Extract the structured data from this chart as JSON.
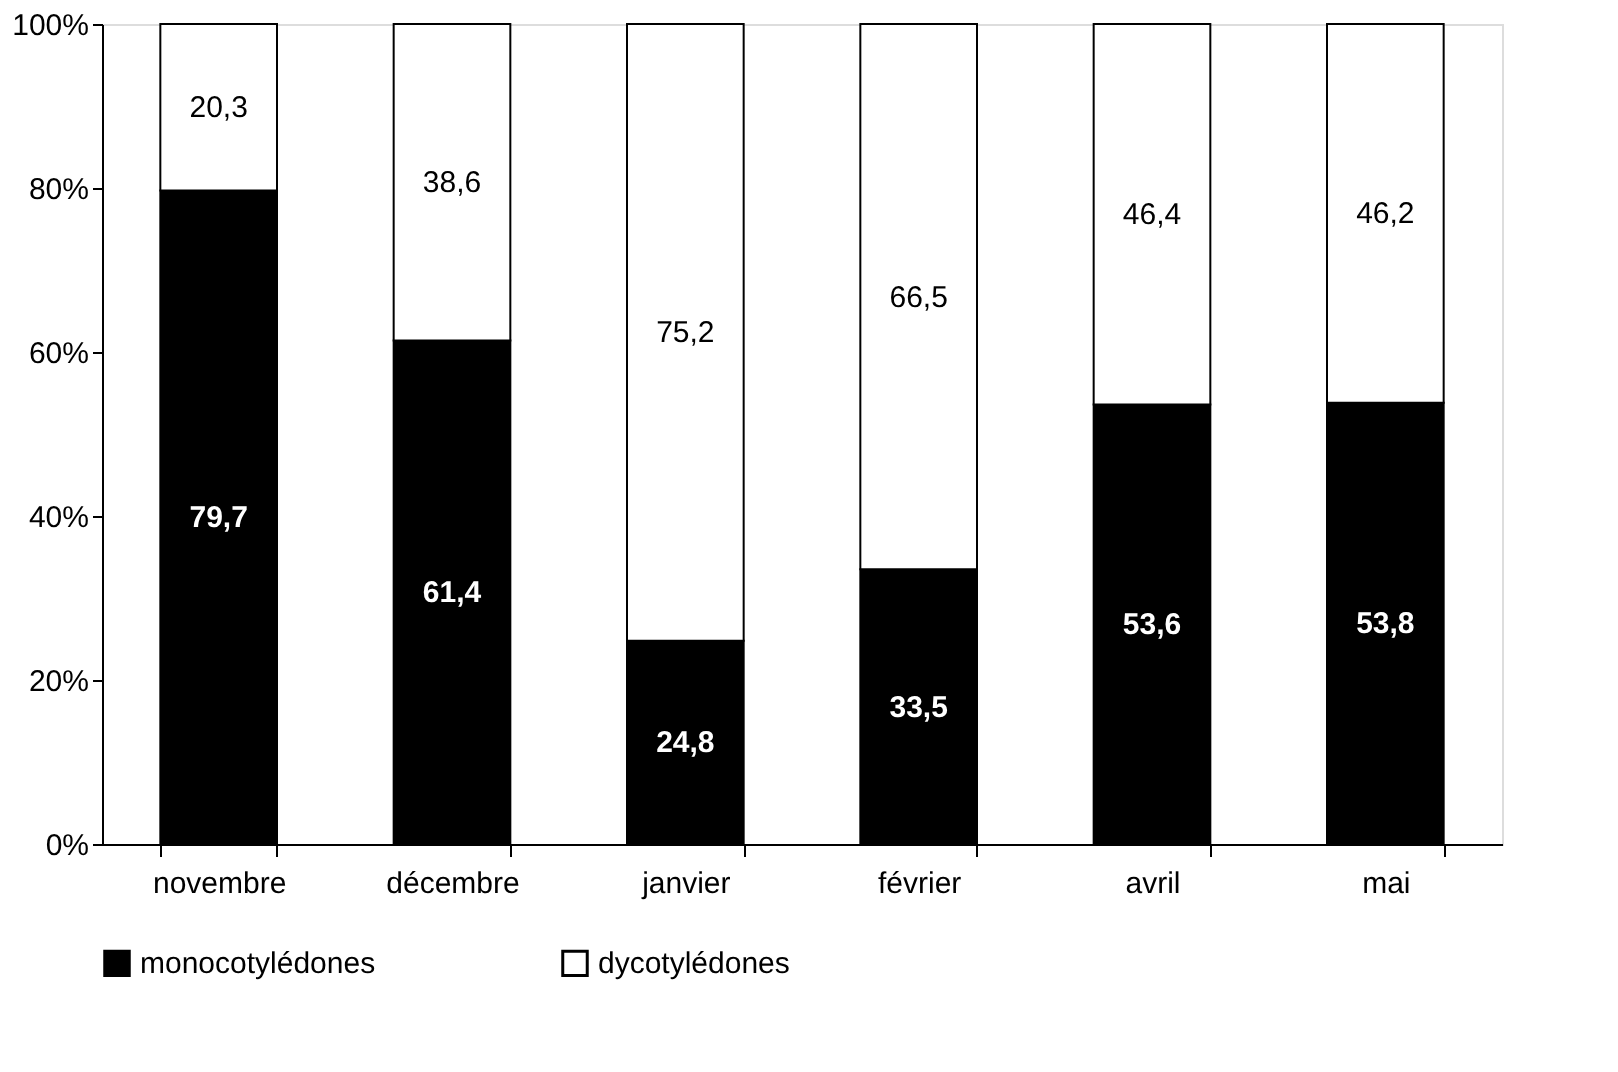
{
  "chart_data": {
    "type": "bar",
    "stacked": true,
    "categories": [
      "novembre",
      "décembre",
      "janvier",
      "février",
      "avril",
      "mai"
    ],
    "series": [
      {
        "name": "monocotylédones",
        "color": "#000000",
        "values": [
          79.7,
          61.4,
          24.8,
          33.5,
          53.6,
          53.8
        ],
        "value_labels": [
          "79,7",
          "61,4",
          "24,8",
          "33,5",
          "53,6",
          "53,8"
        ]
      },
      {
        "name": "dycotylédones",
        "color": "#ffffff",
        "values": [
          20.3,
          38.6,
          75.2,
          66.5,
          46.4,
          46.2
        ],
        "value_labels": [
          "20,3",
          "38,6",
          "75,2",
          "66,5",
          "46,4",
          "46,2"
        ]
      }
    ],
    "ylim": [
      0,
      100
    ],
    "yticks": [
      {
        "value": 0,
        "label": "0%"
      },
      {
        "value": 20,
        "label": "20%"
      },
      {
        "value": 40,
        "label": "40%"
      },
      {
        "value": 60,
        "label": "60%"
      },
      {
        "value": 80,
        "label": "80%"
      },
      {
        "value": 100,
        "label": "100%"
      }
    ],
    "grid": false,
    "legend": "bottom"
  }
}
